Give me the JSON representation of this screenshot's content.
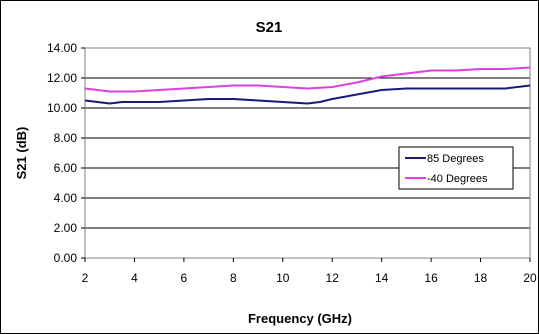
{
  "chart_data": {
    "type": "line",
    "title": "S21",
    "xlabel": "Frequency (GHz)",
    "ylabel": "S21 (dB)",
    "xlim": [
      2,
      20
    ],
    "ylim": [
      0,
      14
    ],
    "x_ticks": [
      2,
      4,
      6,
      8,
      10,
      12,
      14,
      16,
      18,
      20
    ],
    "x_tick_labels": [
      "2",
      "4",
      "6",
      "8",
      "10",
      "12",
      "14",
      "16",
      "18",
      "20"
    ],
    "y_ticks": [
      0,
      2,
      4,
      6,
      8,
      10,
      12,
      14
    ],
    "y_tick_labels": [
      "0.00",
      "2.00",
      "4.00",
      "6.00",
      "8.00",
      "10.00",
      "12.00",
      "14.00"
    ],
    "grid": "horizontal",
    "legend_position": "right",
    "series": [
      {
        "name": "85 Degrees",
        "color": "#1a1a7a",
        "x": [
          2,
          2.5,
          3,
          3.5,
          4,
          5,
          6,
          7,
          8,
          9,
          10,
          11,
          11.5,
          12,
          13,
          14,
          15,
          16,
          17,
          18,
          19,
          20
        ],
        "values": [
          10.5,
          10.4,
          10.3,
          10.4,
          10.4,
          10.4,
          10.5,
          10.6,
          10.6,
          10.5,
          10.4,
          10.3,
          10.4,
          10.6,
          10.9,
          11.2,
          11.3,
          11.3,
          11.3,
          11.3,
          11.3,
          11.5
        ]
      },
      {
        "name": "-40 Degrees",
        "color": "#e040e0",
        "x": [
          2,
          2.5,
          3,
          4,
          5,
          6,
          7,
          8,
          9,
          10,
          11,
          12,
          13,
          14,
          14.5,
          15,
          16,
          17,
          18,
          19,
          20
        ],
        "values": [
          11.3,
          11.2,
          11.1,
          11.1,
          11.2,
          11.3,
          11.4,
          11.5,
          11.5,
          11.4,
          11.3,
          11.4,
          11.7,
          12.1,
          12.2,
          12.3,
          12.5,
          12.5,
          12.6,
          12.6,
          12.7
        ]
      }
    ]
  }
}
